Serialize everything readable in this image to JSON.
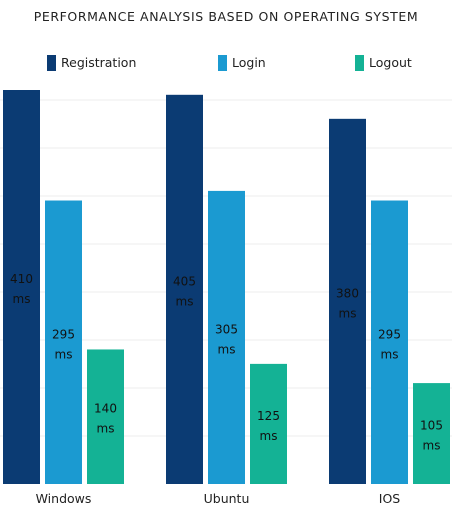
{
  "chart_data": {
    "type": "bar",
    "title": "PERFORMANCE ANALYSIS BASED ON OPERATING SYSTEM",
    "xlabel": "",
    "ylabel": "",
    "unit": "ms",
    "categories": [
      "Windows",
      "Ubuntu",
      "IOS"
    ],
    "series": [
      {
        "name": "Registration",
        "color": "#0B3B73",
        "values": [
          410,
          405,
          380
        ]
      },
      {
        "name": "Login",
        "color": "#1B9AD1",
        "values": [
          295,
          305,
          295
        ]
      },
      {
        "name": "Logout",
        "color": "#14B295",
        "values": [
          140,
          125,
          105
        ]
      }
    ],
    "ylim": [
      0,
      410
    ],
    "grid": true,
    "legend_position": "top"
  }
}
